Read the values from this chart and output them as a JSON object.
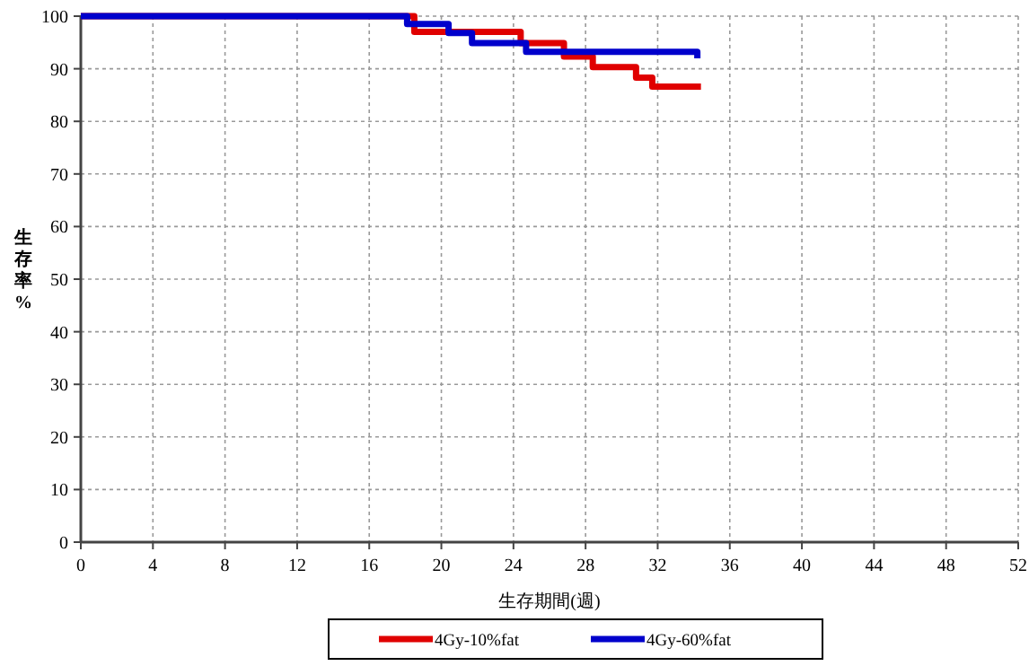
{
  "chart_data": {
    "type": "step",
    "xlabel": "生存期間(週)",
    "ylabel": "生存率%",
    "xlim": [
      0,
      52
    ],
    "ylim": [
      0,
      100
    ],
    "xticks": [
      0,
      4,
      8,
      12,
      16,
      20,
      24,
      28,
      32,
      36,
      40,
      44,
      48,
      52
    ],
    "yticks": [
      0,
      10,
      20,
      30,
      40,
      50,
      60,
      70,
      80,
      90,
      100
    ],
    "grid": true,
    "legend": "bottom",
    "line_style": "solid",
    "series": [
      {
        "name": "4Gy-10%fat",
        "color": "#e00000",
        "x": [
          0,
          18.5,
          24.4,
          26.8,
          28.4,
          30.8,
          31.7,
          34.4
        ],
        "values": [
          100,
          97,
          94.9,
          92.3,
          90.3,
          88.3,
          86.6,
          86.6
        ]
      },
      {
        "name": "4Gy-60%fat",
        "color": "#0000cc",
        "x": [
          0,
          18.1,
          20.4,
          21.7,
          24.7,
          34.2,
          34.2
        ],
        "values": [
          100,
          98.5,
          96.8,
          94.9,
          93.2,
          93.2,
          92
        ]
      }
    ]
  }
}
